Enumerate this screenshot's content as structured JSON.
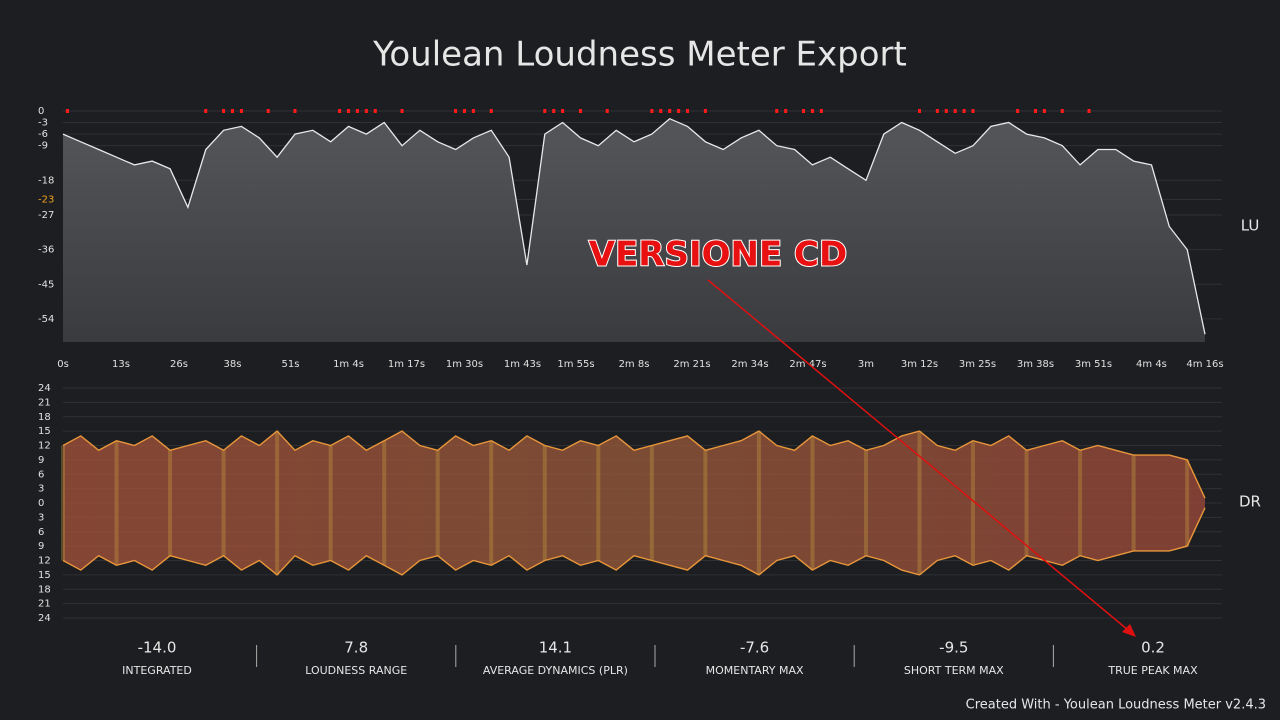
{
  "title": "Youlean Loudness Meter Export",
  "chart_data": [
    {
      "type": "line",
      "y_label": "LU",
      "color": "#e8e8e8",
      "clip_color": "#ff1a1a",
      "xlim": [
        0,
        256
      ],
      "ylim": [
        0,
        -60
      ],
      "xticks": [
        {
          "value": 0,
          "label": "0s"
        },
        {
          "value": 13,
          "label": "13s"
        },
        {
          "value": 26,
          "label": "26s"
        },
        {
          "value": 38,
          "label": "38s"
        },
        {
          "value": 51,
          "label": "51s"
        },
        {
          "value": 64,
          "label": "1m 4s"
        },
        {
          "value": 77,
          "label": "1m 17s"
        },
        {
          "value": 90,
          "label": "1m 30s"
        },
        {
          "value": 103,
          "label": "1m 43s"
        },
        {
          "value": 115,
          "label": "1m 55s"
        },
        {
          "value": 128,
          "label": "2m 8s"
        },
        {
          "value": 141,
          "label": "2m 21s"
        },
        {
          "value": 154,
          "label": "2m 34s"
        },
        {
          "value": 167,
          "label": "2m 47s"
        },
        {
          "value": 180,
          "label": "3m"
        },
        {
          "value": 192,
          "label": "3m 12s"
        },
        {
          "value": 205,
          "label": "3m 25s"
        },
        {
          "value": 218,
          "label": "3m 38s"
        },
        {
          "value": 231,
          "label": "3m 51s"
        },
        {
          "value": 244,
          "label": "4m 4s"
        },
        {
          "value": 256,
          "label": "4m 16s"
        }
      ],
      "yticks": [
        0,
        -3,
        -6,
        -9,
        -18,
        -23,
        -27,
        -36,
        -45,
        -54
      ],
      "target": -23,
      "target_color": "#f0a020",
      "clip_markers": [
        1,
        32,
        36,
        38,
        40,
        46,
        52,
        62,
        64,
        66,
        68,
        70,
        76,
        88,
        90,
        92,
        96,
        108,
        110,
        112,
        116,
        122,
        132,
        134,
        136,
        138,
        140,
        144,
        160,
        162,
        166,
        168,
        170,
        192,
        196,
        198,
        200,
        202,
        204,
        214,
        218,
        220,
        224,
        230
      ],
      "x": [
        0,
        4,
        8,
        12,
        16,
        20,
        24,
        28,
        32,
        36,
        40,
        44,
        48,
        52,
        56,
        60,
        64,
        68,
        72,
        76,
        80,
        84,
        88,
        92,
        96,
        100,
        104,
        108,
        112,
        116,
        120,
        124,
        128,
        132,
        136,
        140,
        144,
        148,
        152,
        156,
        160,
        164,
        168,
        172,
        176,
        180,
        184,
        188,
        192,
        196,
        200,
        204,
        208,
        212,
        216,
        220,
        224,
        228,
        232,
        236,
        240,
        244,
        248,
        252,
        256
      ],
      "values": [
        -6,
        -8,
        -10,
        -12,
        -14,
        -13,
        -15,
        -25,
        -10,
        -5,
        -4,
        -7,
        -12,
        -6,
        -5,
        -8,
        -4,
        -6,
        -3,
        -9,
        -5,
        -8,
        -10,
        -7,
        -5,
        -12,
        -40,
        -6,
        -3,
        -7,
        -9,
        -5,
        -8,
        -6,
        -2,
        -4,
        -8,
        -10,
        -7,
        -5,
        -9,
        -10,
        -14,
        -12,
        -15,
        -18,
        -6,
        -3,
        -5,
        -8,
        -11,
        -9,
        -4,
        -3,
        -6,
        -7,
        -9,
        -14,
        -10,
        -10,
        -13,
        -14,
        -30,
        -36,
        -58
      ]
    },
    {
      "type": "area",
      "y_label": "DR",
      "color": "#e8963a",
      "xlim": [
        0,
        256
      ],
      "ylim": [
        24,
        -24
      ],
      "yticks": [
        24,
        21,
        18,
        15,
        12,
        9,
        6,
        3,
        0,
        {
          "value": -3,
          "label": "3"
        },
        {
          "value": -6,
          "label": "6"
        },
        {
          "value": -9,
          "label": "9"
        },
        {
          "value": -12,
          "label": "12"
        },
        {
          "value": -15,
          "label": "15"
        },
        {
          "value": -18,
          "label": "18"
        },
        {
          "value": -21,
          "label": "21"
        },
        {
          "value": -24,
          "label": "24"
        }
      ],
      "x": [
        0,
        4,
        8,
        12,
        16,
        20,
        24,
        28,
        32,
        36,
        40,
        44,
        48,
        52,
        56,
        60,
        64,
        68,
        72,
        76,
        80,
        84,
        88,
        92,
        96,
        100,
        104,
        108,
        112,
        116,
        120,
        124,
        128,
        132,
        136,
        140,
        144,
        148,
        152,
        156,
        160,
        164,
        168,
        172,
        176,
        180,
        184,
        188,
        192,
        196,
        200,
        204,
        208,
        212,
        216,
        220,
        224,
        228,
        232,
        236,
        240,
        244,
        248,
        252,
        256
      ],
      "values": [
        12,
        14,
        11,
        13,
        12,
        14,
        11,
        12,
        13,
        11,
        14,
        12,
        15,
        11,
        13,
        12,
        14,
        11,
        13,
        15,
        12,
        11,
        14,
        12,
        13,
        11,
        14,
        12,
        11,
        13,
        12,
        14,
        11,
        12,
        13,
        14,
        11,
        12,
        13,
        15,
        12,
        11,
        14,
        12,
        13,
        11,
        12,
        14,
        15,
        12,
        11,
        13,
        12,
        14,
        11,
        12,
        13,
        11,
        12,
        11,
        10,
        10,
        10,
        9,
        1
      ]
    }
  ],
  "stats": [
    {
      "value": "-14.0",
      "label": "INTEGRATED"
    },
    {
      "value": "7.8",
      "label": "LOUDNESS RANGE"
    },
    {
      "value": "14.1",
      "label": "AVERAGE DYNAMICS (PLR)"
    },
    {
      "value": "-7.6",
      "label": "MOMENTARY MAX"
    },
    {
      "value": "-9.5",
      "label": "SHORT TERM MAX"
    },
    {
      "value": "0.2",
      "label": "TRUE PEAK MAX"
    }
  ],
  "annotation": "VERSIONE CD",
  "footer": "Created With - Youlean Loudness Meter v2.4.3"
}
